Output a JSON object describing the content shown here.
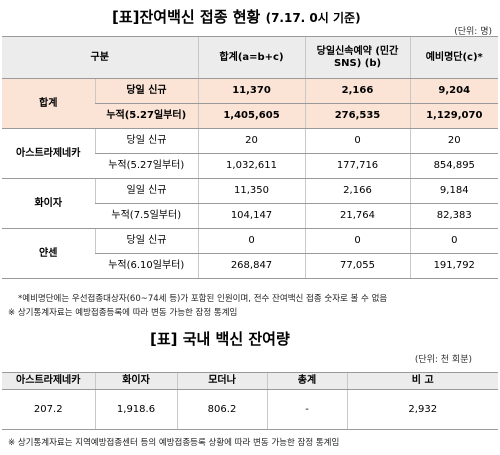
{
  "header": {
    "title": "[표]잔여백신 접종 현황",
    "subtitle": "(7.17. 0시 기준)",
    "unit": "(단위: 명)"
  },
  "table": {
    "columns": [
      "구분",
      "합계(a=b+c)",
      "당일신속예약 (민간SNS) (b)",
      "예비명단(c)*"
    ],
    "groups": [
      {
        "name": "합계",
        "rows": [
          [
            "당일 신규",
            "11,370",
            "2,166",
            "9,204"
          ],
          [
            "누적(5.27일부터)",
            "1,405,605",
            "276,535",
            "1,129,070"
          ]
        ]
      },
      {
        "name": "아스트라제네카",
        "rows": [
          [
            "당일 신규",
            "20",
            "0",
            "20"
          ],
          [
            "누적(5.27일부터)",
            "1,032,611",
            "177,716",
            "854,895"
          ]
        ]
      },
      {
        "name": "화이자",
        "rows": [
          [
            "일일 신규",
            "11,350",
            "2,166",
            "9,184"
          ],
          [
            "누적(7.5일부터)",
            "104,147",
            "21,764",
            "82,383"
          ]
        ]
      },
      {
        "name": "얀센",
        "rows": [
          [
            "당일 신규",
            "0",
            "0",
            "0"
          ],
          [
            "누적(6.10일부터)",
            "268,847",
            "77,055",
            "191,792"
          ]
        ]
      }
    ]
  },
  "notes": [
    "*예비명단에는 우선접종대상자(60~74세 등)가 포함된 인원이며, 전수 잔여백신 접종 숫자로 볼 수 없음",
    "※ 상기통계자료는 예방접종등록에 따라 변동 가능한 잠정 통계임"
  ],
  "header2": {
    "title": "[표] 국내 백신 잔여량",
    "unit": "(단위: 천 회분)"
  },
  "table2": {
    "columns": [
      "아스트라제네카",
      "화이자",
      "모더나",
      "총계",
      "비 고"
    ],
    "rows": [
      [
        "207.2",
        "1,918.6",
        "806.2",
        "-",
        "2,932"
      ]
    ]
  },
  "notes2": [
    "※ 상기통계자료는 지역예방접종센터 등의 예방접종등록 상황에 따라 변동 가능한 잠정 통계임"
  ]
}
